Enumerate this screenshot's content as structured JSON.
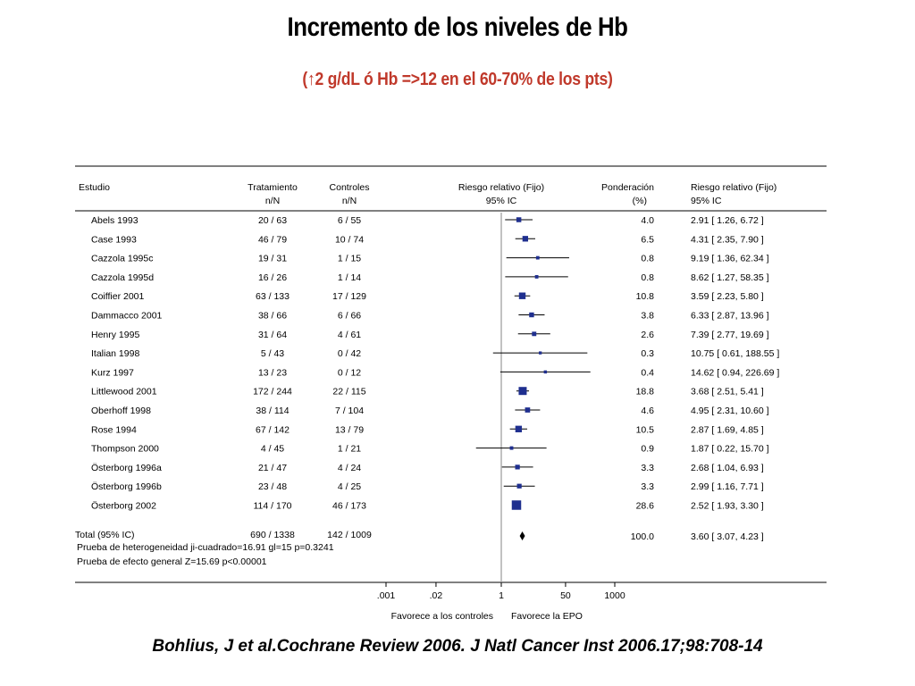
{
  "title": "Incremento de los niveles de Hb",
  "subtitle": "(↑2 g/dL ó Hb =>12 en el 60-70% de los pts)",
  "citation": "Bohlius, J et al.Cochrane Review 2006. J Natl Cancer Inst 2006.17;98:708-14",
  "colors": {
    "marker": "#1f2f8f",
    "line": "#000000",
    "axis_ref": "#9a9a9a"
  },
  "chart_data": {
    "type": "forest",
    "headers": {
      "study": "Estudio",
      "treatment": [
        "Tratamiento",
        "n/N"
      ],
      "control": [
        "Controles",
        "n/N"
      ],
      "effect": [
        "Riesgo relativo (Fijo)",
        "95% IC"
      ],
      "weight": [
        "Ponderación",
        "(%)"
      ],
      "result": [
        "Riesgo relativo (Fijo)",
        "95% IC"
      ]
    },
    "studies": [
      {
        "name": "Abels 1993",
        "treatment": "20 / 63",
        "control": "6 / 55",
        "weight": "4.0",
        "ci_text": "2.91 [ 1.26, 6.72 ]",
        "rr": 2.91,
        "lo": 1.26,
        "hi": 6.72,
        "w": 4.0
      },
      {
        "name": "Case 1993",
        "treatment": "46 / 79",
        "control": "10 / 74",
        "weight": "6.5",
        "ci_text": "4.31 [ 2.35, 7.90 ]",
        "rr": 4.31,
        "lo": 2.35,
        "hi": 7.9,
        "w": 6.5
      },
      {
        "name": "Cazzola 1995c",
        "treatment": "19 / 31",
        "control": "1 / 15",
        "weight": "0.8",
        "ci_text": "9.19 [ 1.36, 62.34 ]",
        "rr": 9.19,
        "lo": 1.36,
        "hi": 62.34,
        "w": 0.8
      },
      {
        "name": "Cazzola 1995d",
        "treatment": "16 / 26",
        "control": "1 / 14",
        "weight": "0.8",
        "ci_text": "8.62 [ 1.27, 58.35 ]",
        "rr": 8.62,
        "lo": 1.27,
        "hi": 58.35,
        "w": 0.8
      },
      {
        "name": "Coiffier 2001",
        "treatment": "63 / 133",
        "control": "17 / 129",
        "weight": "10.8",
        "ci_text": "3.59 [ 2.23, 5.80 ]",
        "rr": 3.59,
        "lo": 2.23,
        "hi": 5.8,
        "w": 10.8
      },
      {
        "name": "Dammacco 2001",
        "treatment": "38 / 66",
        "control": "6 / 66",
        "weight": "3.8",
        "ci_text": "6.33 [ 2.87, 13.96 ]",
        "rr": 6.33,
        "lo": 2.87,
        "hi": 13.96,
        "w": 3.8
      },
      {
        "name": "Henry 1995",
        "treatment": "31 / 64",
        "control": "4 / 61",
        "weight": "2.6",
        "ci_text": "7.39 [ 2.77, 19.69 ]",
        "rr": 7.39,
        "lo": 2.77,
        "hi": 19.69,
        "w": 2.6
      },
      {
        "name": "Italian 1998",
        "treatment": "5 / 43",
        "control": "0 / 42",
        "weight": "0.3",
        "ci_text": "10.75 [ 0.61, 188.55 ]",
        "rr": 10.75,
        "lo": 0.61,
        "hi": 188.55,
        "w": 0.3
      },
      {
        "name": "Kurz 1997",
        "treatment": "13 / 23",
        "control": "0 / 12",
        "weight": "0.4",
        "ci_text": "14.62 [ 0.94, 226.69 ]",
        "rr": 14.62,
        "lo": 0.94,
        "hi": 226.69,
        "w": 0.4
      },
      {
        "name": "Littlewood 2001",
        "treatment": "172 / 244",
        "control": "22 / 115",
        "weight": "18.8",
        "ci_text": "3.68 [ 2.51, 5.41 ]",
        "rr": 3.68,
        "lo": 2.51,
        "hi": 5.41,
        "w": 18.8
      },
      {
        "name": "Oberhoff 1998",
        "treatment": "38 / 114",
        "control": "7 / 104",
        "weight": "4.6",
        "ci_text": "4.95 [ 2.31, 10.60 ]",
        "rr": 4.95,
        "lo": 2.31,
        "hi": 10.6,
        "w": 4.6
      },
      {
        "name": "Rose 1994",
        "treatment": "67 / 142",
        "control": "13 / 79",
        "weight": "10.5",
        "ci_text": "2.87 [ 1.69, 4.85 ]",
        "rr": 2.87,
        "lo": 1.69,
        "hi": 4.85,
        "w": 10.5
      },
      {
        "name": "Thompson 2000",
        "treatment": "4 / 45",
        "control": "1 / 21",
        "weight": "0.9",
        "ci_text": "1.87 [ 0.22, 15.70 ]",
        "rr": 1.87,
        "lo": 0.22,
        "hi": 15.7,
        "w": 0.9
      },
      {
        "name": "Österborg 1996a",
        "treatment": "21 / 47",
        "control": "4 / 24",
        "weight": "3.3",
        "ci_text": "2.68 [ 1.04, 6.93 ]",
        "rr": 2.68,
        "lo": 1.04,
        "hi": 6.93,
        "w": 3.3
      },
      {
        "name": "Österborg 1996b",
        "treatment": "23 / 48",
        "control": "4 / 25",
        "weight": "3.3",
        "ci_text": "2.99 [ 1.16, 7.71 ]",
        "rr": 2.99,
        "lo": 1.16,
        "hi": 7.71,
        "w": 3.3
      },
      {
        "name": "Österborg 2002",
        "treatment": "114 / 170",
        "control": "46 / 173",
        "weight": "28.6",
        "ci_text": "2.52 [ 1.93, 3.30 ]",
        "rr": 2.52,
        "lo": 1.93,
        "hi": 3.3,
        "w": 28.6
      }
    ],
    "total": {
      "name": "Total (95% IC)",
      "treatment": "690 / 1338",
      "control": "142 / 1009",
      "weight": "100.0",
      "ci_text": "3.60 [ 3.07, 4.23 ]",
      "rr": 3.6,
      "lo": 3.07,
      "hi": 4.23
    },
    "heterogeneity": "Prueba de heterogeneidad ji-cuadrado=16.91 gl=15 p=0.3241",
    "overall_effect": "Prueba de efecto general Z=15.69 p<0.00001",
    "axis": {
      "scale": "log",
      "ticks": [
        0.001,
        0.02,
        1,
        50,
        1000
      ],
      "tick_labels": [
        ".001",
        ".02",
        "1",
        "50",
        "1000"
      ],
      "label_left": "Favorece a los controles",
      "label_right": "Favorece la EPO"
    }
  }
}
